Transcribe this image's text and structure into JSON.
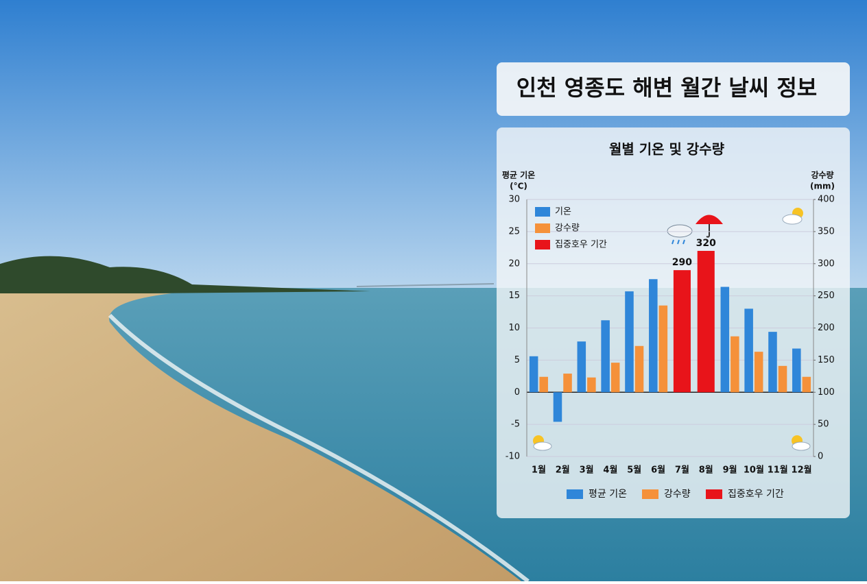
{
  "header": {
    "title": "인천 영종도 해변 월간 날씨 정보"
  },
  "chart_data": {
    "type": "bar",
    "title": "월별 기온 및 강수량",
    "y_label": [
      "평균 기온",
      "(°C)"
    ],
    "y2_label": [
      "강수량",
      "(mm)"
    ],
    "categories": [
      "1월",
      "2월",
      "3월",
      "4월",
      "5월",
      "6월",
      "7월",
      "8월",
      "9월",
      "10월",
      "11월",
      "12월"
    ],
    "inner_legend": [
      "기온",
      "강수량",
      "집중호우 기간"
    ],
    "series": [
      {
        "name": "평균 기온",
        "color": "#2f86d9",
        "values": [
          5.6,
          -4.6,
          7.9,
          11.2,
          15.7,
          17.6,
          null,
          null,
          16.4,
          13.0,
          9.4,
          6.8
        ]
      },
      {
        "name": "강수량",
        "color": "#f5913a",
        "axis": "y2",
        "values": [
          124,
          129,
          123,
          146,
          172,
          235,
          null,
          null,
          187,
          163,
          141,
          124
        ]
      },
      {
        "name": "집중호우 기간",
        "color": "#e8141a",
        "axis": "y2",
        "values": [
          null,
          null,
          null,
          null,
          null,
          null,
          290,
          320,
          null,
          null,
          null,
          null
        ]
      }
    ],
    "ylim": [
      -10,
      30
    ],
    "yticks": [
      -10,
      -5,
      0,
      5,
      10,
      15,
      20,
      25,
      30
    ],
    "y2lim": [
      0,
      400
    ],
    "y2ticks": [
      0,
      50,
      100,
      150,
      200,
      250,
      300,
      350,
      400
    ],
    "grid": true
  }
}
